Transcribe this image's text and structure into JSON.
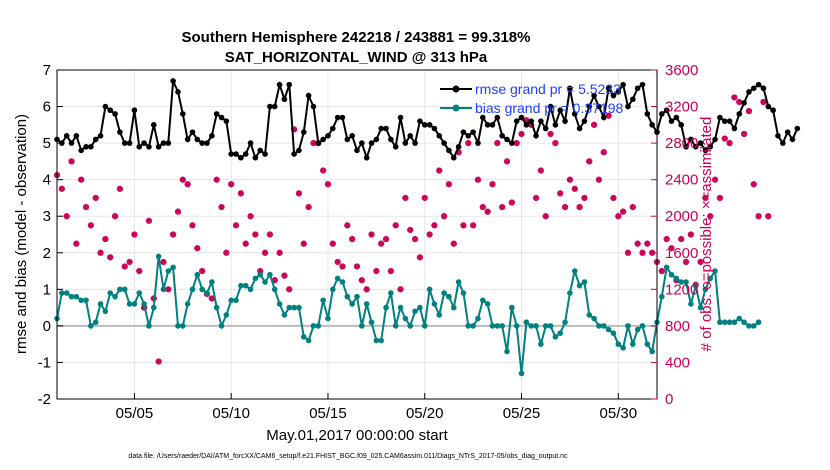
{
  "chart_data": {
    "type": "line",
    "title": "Southern Hemisphere 242218 / 243881 = 99.318%",
    "subtitle": "SAT_HORIZONTAL_WIND @ 313 hPa",
    "xlabel": "May.01,2017 00:00:00 start",
    "ylabel_left": "rmse and bias (model - observation)",
    "ylabel_right": "# of obs: o=possible; ×=assimilated",
    "x_ticks": [
      "05/05",
      "05/10",
      "05/15",
      "05/20",
      "05/25",
      "05/30"
    ],
    "x_tick_days": [
      5,
      10,
      15,
      20,
      25,
      30
    ],
    "xlim": [
      1,
      32
    ],
    "ylim_left": [
      -2,
      7
    ],
    "ylim_right": [
      0,
      3600
    ],
    "y_ticks_left": [
      "-2",
      "-1",
      "0",
      "1",
      "2",
      "3",
      "4",
      "5",
      "6",
      "7"
    ],
    "y_ticks_right": [
      "0",
      "400",
      "800",
      "1200",
      "1600",
      "2000",
      "2400",
      "2800",
      "3200",
      "3600"
    ],
    "zero_line": 0,
    "legend_position": "top-right",
    "colors": {
      "rmse": "#000000",
      "bias": "#008080",
      "obs": "#cc0055",
      "zero": "#bbbbbb"
    },
    "series": [
      {
        "name": "rmse grand pr = 5.5233",
        "axis": "left",
        "x_start": 1.0,
        "x_step": 0.25,
        "values": [
          5.1,
          5.0,
          5.2,
          5.0,
          5.2,
          4.8,
          4.9,
          4.9,
          5.1,
          5.2,
          6.0,
          5.9,
          5.8,
          5.3,
          5.0,
          5.0,
          5.9,
          4.9,
          5.0,
          4.9,
          5.5,
          4.9,
          5.0,
          5.0,
          6.7,
          6.4,
          5.8,
          5.1,
          5.3,
          5.1,
          5.0,
          5.0,
          5.2,
          5.8,
          5.7,
          5.6,
          4.7,
          4.7,
          4.6,
          4.7,
          5.0,
          4.6,
          4.8,
          4.7,
          6.0,
          6.0,
          6.6,
          6.2,
          6.6,
          4.7,
          4.8,
          5.3,
          6.3,
          6.0,
          5.0,
          5.1,
          5.2,
          5.4,
          5.7,
          5.7,
          5.1,
          5.2,
          4.8,
          5.0,
          4.6,
          5.0,
          5.1,
          5.4,
          5.4,
          5.1,
          4.9,
          5.7,
          5.0,
          5.2,
          5.0,
          5.6,
          5.5,
          5.5,
          5.4,
          5.2,
          5.0,
          4.8,
          4.6,
          4.9,
          5.3,
          5.2,
          5.3,
          5.0,
          5.7,
          5.5,
          5.5,
          5.7,
          5.2,
          5.1,
          5.0,
          5.6,
          5.7,
          5.5,
          5.6,
          5.2,
          5.6,
          5.4,
          6.0,
          5.5,
          5.9,
          5.6,
          6.5,
          5.8,
          5.4,
          5.6,
          6.0,
          6.3,
          6.0,
          5.7,
          6.5,
          6.3,
          6.4,
          6.6,
          6.0,
          6.2,
          6.5,
          6.6,
          5.8,
          5.5,
          5.3,
          5.8,
          5.9,
          5.6,
          5.7,
          5.5,
          4.9,
          5.1,
          4.9,
          5.0,
          4.8,
          4.9,
          5.1,
          5.7,
          5.6,
          5.6,
          5.4,
          5.8,
          6.1,
          6.4,
          6.5,
          6.6,
          6.5,
          6.0,
          5.9,
          5.2,
          5.0,
          5.3,
          5.1,
          5.4
        ]
      },
      {
        "name": "bias grand pr = 0.37198",
        "axis": "left",
        "x_start": 1.0,
        "x_step": 0.25,
        "values": [
          0.2,
          0.9,
          0.9,
          0.8,
          0.8,
          0.7,
          0.7,
          0.0,
          0.1,
          0.6,
          0.4,
          0.9,
          0.8,
          1.0,
          1.0,
          0.6,
          0.6,
          0.9,
          0.6,
          0.0,
          0.5,
          1.9,
          1.0,
          1.5,
          1.6,
          0.0,
          0.0,
          0.6,
          1.0,
          1.4,
          1.0,
          0.9,
          1.2,
          0.5,
          0.0,
          0.3,
          0.7,
          0.7,
          1.1,
          1.1,
          1.0,
          1.3,
          1.4,
          1.2,
          1.4,
          1.0,
          0.6,
          0.3,
          0.5,
          0.5,
          0.5,
          -0.3,
          -0.4,
          0.0,
          0.0,
          0.7,
          0.2,
          1.0,
          1.3,
          1.2,
          0.8,
          0.6,
          0.8,
          0.0,
          0.6,
          0.1,
          -0.4,
          -0.4,
          0.5,
          0.9,
          0.0,
          0.5,
          0.2,
          0.0,
          0.4,
          0.5,
          0.0,
          1.0,
          0.6,
          0.3,
          0.9,
          0.8,
          0.5,
          1.2,
          0.9,
          0.0,
          0.0,
          0.2,
          0.7,
          0.6,
          0.0,
          0.0,
          0.0,
          -0.7,
          0.5,
          0.0,
          -1.3,
          0.1,
          0.0,
          0.0,
          -0.5,
          0.0,
          0.0,
          -0.3,
          -0.2,
          0.1,
          0.9,
          1.5,
          1.1,
          1.2,
          0.3,
          0.2,
          0.0,
          0.0,
          -0.1,
          -0.2,
          -0.5,
          -0.6,
          0.0,
          -0.5,
          -0.1,
          0.0,
          -0.5,
          -0.7,
          0.1,
          0.8,
          1.6,
          1.4,
          1.3,
          1.2,
          1.2,
          0.6,
          1.1,
          0.5,
          1.0,
          1.3,
          1.5,
          0.1,
          0.1,
          0.1,
          0.1,
          0.2,
          0.1,
          0.0,
          0.0,
          0.1
        ]
      },
      {
        "name": "possible",
        "axis": "right",
        "marker": "circle",
        "x_start": 1.0,
        "x_step": 0.25,
        "values": [
          2450,
          2300,
          2000,
          2600,
          1700,
          2400,
          2100,
          1900,
          2200,
          1600,
          1750,
          1550,
          2000,
          2300,
          1450,
          1500,
          1800,
          1400,
          1000,
          1950,
          1100,
          410,
          1500,
          1200,
          1800,
          2050,
          2400,
          2350,
          1900,
          1650,
          1400,
          1150,
          1100,
          2400,
          2100,
          1600,
          2350,
          1900,
          2250,
          1700,
          2000,
          1800,
          1400,
          1600,
          1800,
          1300,
          1600,
          1350,
          1200,
          2950,
          2250,
          1700,
          2100,
          2800,
          2800,
          2500,
          2350,
          1700,
          1500,
          1450,
          1900,
          1750,
          1450,
          1300,
          1200,
          1800,
          1400,
          1700,
          1750,
          1400,
          1900,
          1200,
          2200,
          1850,
          1750,
          1550,
          2200,
          1800,
          1900,
          2500,
          2000,
          2350,
          1700,
          2700,
          1900,
          2800,
          1900,
          2400,
          2100,
          2050,
          2350,
          2800,
          2100,
          2600,
          2150,
          2800,
          2900,
          3050,
          3000,
          2200,
          2500,
          2000,
          2900,
          2800,
          2250,
          2100,
          2400,
          2300,
          2100,
          2200,
          2600,
          3000,
          2400,
          2700,
          3100,
          2200,
          2000,
          2050,
          1600,
          2100,
          1700,
          1600,
          1700,
          1600,
          1500,
          1400,
          1750,
          1650,
          1300,
          1750,
          1500,
          1800,
          1250,
          1500,
          2200,
          2000,
          2400,
          2200,
          2850,
          2800,
          3300,
          3250,
          2900,
          3150,
          2350,
          2000,
          3250,
          2000
        ]
      },
      {
        "name": "assimilated",
        "axis": "right",
        "marker": "star",
        "x_start": 1.0,
        "x_step": 0.25,
        "values": [
          2450,
          2300,
          2000,
          2600,
          1700,
          2400,
          2100,
          1900,
          2200,
          1600,
          1750,
          1550,
          2000,
          2300,
          1450,
          1500,
          1800,
          1400,
          1000,
          1950,
          1100,
          410,
          1500,
          1200,
          1800,
          2050,
          2400,
          2350,
          1900,
          1650,
          1400,
          1150,
          1100,
          2400,
          2100,
          1600,
          2350,
          1900,
          2250,
          1700,
          2000,
          1800,
          1400,
          1600,
          1800,
          1300,
          1600,
          1350,
          1200,
          2950,
          2250,
          1700,
          2100,
          2800,
          2800,
          2500,
          2350,
          1700,
          1500,
          1450,
          1900,
          1750,
          1450,
          1300,
          1200,
          1800,
          1400,
          1700,
          1750,
          1400,
          1900,
          1200,
          2200,
          1850,
          1750,
          1550,
          2200,
          1800,
          1900,
          2500,
          2000,
          2350,
          1700,
          2700,
          1900,
          2800,
          1900,
          2400,
          2100,
          2050,
          2350,
          2800,
          2100,
          2600,
          2150,
          2800,
          2900,
          3050,
          3000,
          2200,
          2500,
          2000,
          2900,
          2800,
          2250,
          2100,
          2400,
          2300,
          2100,
          2200,
          2600,
          3000,
          2400,
          2700,
          3100,
          2200,
          2000,
          2050,
          1600,
          2100,
          1700,
          1600,
          1700,
          1600,
          1500,
          1400,
          1750,
          1650,
          1300,
          1750,
          1500,
          1800,
          1250,
          1500,
          2200,
          2000,
          2400,
          2200,
          2850,
          2800,
          3300,
          3250,
          2900,
          3150,
          2350,
          2000,
          3250,
          2000
        ]
      }
    ]
  },
  "footnote": "data file: /Users/raeder/DAI/ATM_forcXX/CAM6_setup/f.e21.FHIST_BGC.f09_025.CAM6assim.011/Diags_NTrS_2017-05/obs_diag_output.nc"
}
